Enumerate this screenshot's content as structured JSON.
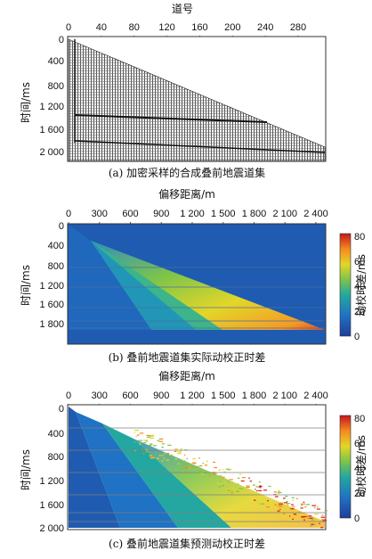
{
  "panels": [
    {
      "caption": "(a) 加密采样的合成叠前地震道集",
      "xlabel": "道号",
      "ylabel": "时间/ms",
      "xticks": [
        "0",
        "40",
        "80",
        "120",
        "160",
        "200",
        "240",
        "280"
      ],
      "yticks": [
        "0",
        "400",
        "800",
        "1 200",
        "1 600",
        "2 000"
      ]
    },
    {
      "caption": "(b) 叠前地震道集实际动校正时差",
      "xlabel": "偏移距离/m",
      "ylabel": "时间/ms",
      "xticks": [
        "0",
        "300",
        "600",
        "900",
        "1 200",
        "1 500",
        "1 800",
        "2 100",
        "2 400"
      ],
      "yticks": [
        "0",
        "400",
        "800",
        "1 200",
        "1 600",
        "1 800"
      ],
      "colorbar_label": "动校时差/ms",
      "colorbar_ticks": [
        "80",
        "60",
        "40",
        "20",
        "0"
      ]
    },
    {
      "caption": "(c) 叠前地震道集预测动校正时差",
      "xlabel": "偏移距离/m",
      "ylabel": "时间/ms",
      "xticks": [
        "0",
        "300",
        "600",
        "900",
        "1 200",
        "1 500",
        "1 800",
        "2 100",
        "2 400"
      ],
      "yticks": [
        "0",
        "400",
        "800",
        "1 200",
        "1 600",
        "2 000"
      ],
      "colorbar_label": "动校时差/ms",
      "colorbar_ticks": [
        "80",
        "60",
        "40",
        "20",
        "0"
      ]
    }
  ],
  "chart_data": [
    {
      "type": "heatmap",
      "title": "(a) 加密采样的合成叠前地震道集",
      "xlabel": "道号",
      "ylabel": "时间/ms",
      "xlim": [
        0,
        310
      ],
      "ylim": [
        0,
        2100
      ],
      "notes_series": [
        {
          "x": [
            0,
            310
          ],
          "y": [
            0,
            1800
          ]
        }
      ]
    },
    {
      "type": "heatmap",
      "title": "(b) 叠前地震道集实际动校正时差",
      "xlabel": "偏移距离/m",
      "ylabel": "时间/ms",
      "xlim": [
        0,
        2450
      ],
      "ylim": [
        0,
        2000
      ],
      "colorbar": {
        "label": "动校时差/ms",
        "min": 0,
        "max": 80
      },
      "series": [
        {
          "x": [
            0,
            280
          ],
          "y": [
            0,
            260
          ],
          "values": [
            0,
            0
          ]
        },
        {
          "x": [
            280,
            2400
          ],
          "y": [
            260,
            1920
          ],
          "values": [
            10,
            75
          ]
        }
      ]
    },
    {
      "type": "heatmap",
      "title": "(c) 叠前地震道集预测动校正时差",
      "xlabel": "偏移距离/m",
      "ylabel": "时间/ms",
      "xlim": [
        0,
        2450
      ],
      "ylim": [
        0,
        2080
      ],
      "colorbar": {
        "label": "动校时差/ms",
        "min": 0,
        "max": 80
      },
      "series": [
        {
          "x": [
            0,
            300
          ],
          "y": [
            0,
            300
          ],
          "values": [
            0,
            0
          ]
        },
        {
          "x": [
            300,
            2400
          ],
          "y": [
            300,
            1950
          ],
          "values": [
            10,
            75
          ]
        }
      ]
    }
  ]
}
